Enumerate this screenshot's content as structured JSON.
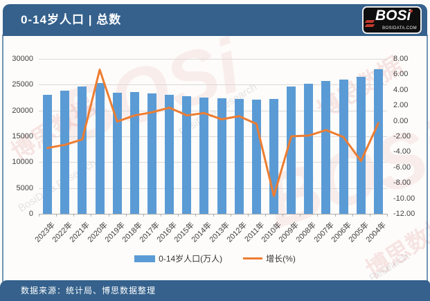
{
  "header": {
    "title": "0-14岁人口 | 总数",
    "logo": {
      "brand": "BOSi",
      "domain": "BOSIDATA.COM"
    }
  },
  "footer": {
    "source": "数据来源：统计局、博思数据整理"
  },
  "legend": [
    {
      "label": "0-14岁人口(万人)",
      "color": "#5B9BD5",
      "type": "bar"
    },
    {
      "label": "增长(%)",
      "color": "#ED7D31",
      "type": "line"
    }
  ],
  "colors": {
    "brand_blue": "#35618C",
    "bar_blue": "#5B9BD5",
    "line_orange": "#ED7D31",
    "gridline": "#D9D9D9"
  },
  "watermarks": [
    "BOSi",
    "博思数据",
    "BosiData Research"
  ],
  "chart_data": {
    "type": "bar",
    "title": "0-14岁人口 | 总数",
    "xlabel": "",
    "ylabel": "",
    "grid": true,
    "legend_position": "bottom",
    "categories": [
      "2023年",
      "2022年",
      "2021年",
      "2020年",
      "2019年",
      "2018年",
      "2017年",
      "2016年",
      "2015年",
      "2014年",
      "2013年",
      "2012年",
      "2011年",
      "2010年",
      "2009年",
      "2008年",
      "2007年",
      "2006年",
      "2005年",
      "2004年"
    ],
    "series": [
      {
        "name": "0-14岁人口(万人)",
        "type": "bar",
        "axis": "left",
        "values": [
          23063,
          23908,
          24678,
          25277,
          23492,
          23523,
          23348,
          23091,
          22715,
          22558,
          22329,
          22287,
          22164,
          22259,
          24659,
          25166,
          25660,
          25961,
          26504,
          27947
        ]
      },
      {
        "name": "增长(%)",
        "type": "line",
        "axis": "right",
        "values": [
          -3.5,
          -3.1,
          -2.4,
          6.6,
          -0.1,
          0.7,
          1.1,
          1.7,
          0.7,
          1.0,
          0.2,
          0.6,
          -0.4,
          -9.7,
          -2.0,
          -1.9,
          -1.2,
          -2.1,
          -5.2,
          -0.3
        ]
      }
    ],
    "left_axis": {
      "min": 0,
      "max": 30000,
      "step": 5000,
      "ticks": [
        "30000",
        "25000",
        "20000",
        "15000",
        "10000",
        "5000",
        "0"
      ]
    },
    "right_axis": {
      "min": -12,
      "max": 8,
      "step": 2,
      "ticks": [
        "8.00",
        "6.00",
        "4.00",
        "2.00",
        "0.00",
        "-2.00",
        "-4.00",
        "-6.00",
        "-8.00",
        "-10.00",
        "-12.00"
      ]
    }
  }
}
